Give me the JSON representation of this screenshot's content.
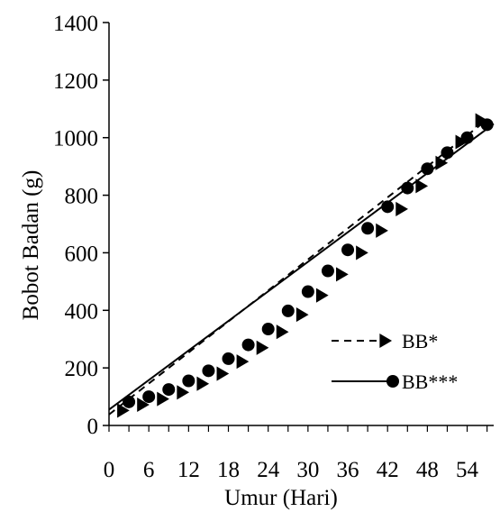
{
  "chart_data": {
    "type": "line",
    "title": "",
    "xlabel": "Umur  (Hari)",
    "ylabel": "Bobot Badan (g)",
    "xlim": [
      0,
      58
    ],
    "ylim": [
      0,
      1400
    ],
    "x_ticks": [
      0,
      6,
      12,
      18,
      24,
      30,
      36,
      42,
      48,
      54
    ],
    "y_ticks": [
      0,
      200,
      400,
      600,
      800,
      1000,
      1200,
      1400
    ],
    "x_tick_labels": [
      "0",
      "6",
      "12",
      "18",
      "24",
      "30",
      "36",
      "42",
      "48",
      "54"
    ],
    "y_tick_labels": [
      "0",
      "200",
      "400",
      "600",
      "800",
      "1000",
      "1200",
      "1400"
    ],
    "grid": false,
    "legend_position": "center-right",
    "series": [
      {
        "name": "BB*",
        "line_style": "dashed",
        "marker": "triangle-right",
        "color": "#000000",
        "line_x": [
          0,
          57
        ],
        "line_y": [
          38,
          1062
        ],
        "x": [
          2,
          5,
          8,
          11,
          14,
          17,
          20,
          23,
          26,
          29,
          32,
          35,
          38,
          41,
          44,
          47,
          50,
          53,
          56
        ],
        "y": [
          52,
          72,
          92,
          115,
          145,
          180,
          222,
          270,
          325,
          385,
          452,
          525,
          600,
          677,
          752,
          832,
          912,
          985,
          1060
        ]
      },
      {
        "name": "BB***",
        "line_style": "solid",
        "marker": "circle",
        "color": "#000000",
        "line_x": [
          0,
          58
        ],
        "line_y": [
          55,
          1048
        ],
        "x": [
          3,
          6,
          9,
          12,
          15,
          18,
          21,
          24,
          27,
          30,
          33,
          36,
          39,
          42,
          45,
          48,
          51,
          54,
          57
        ],
        "y": [
          82,
          100,
          125,
          155,
          190,
          232,
          280,
          335,
          398,
          465,
          537,
          610,
          685,
          760,
          825,
          892,
          948,
          1000,
          1045
        ]
      }
    ]
  }
}
